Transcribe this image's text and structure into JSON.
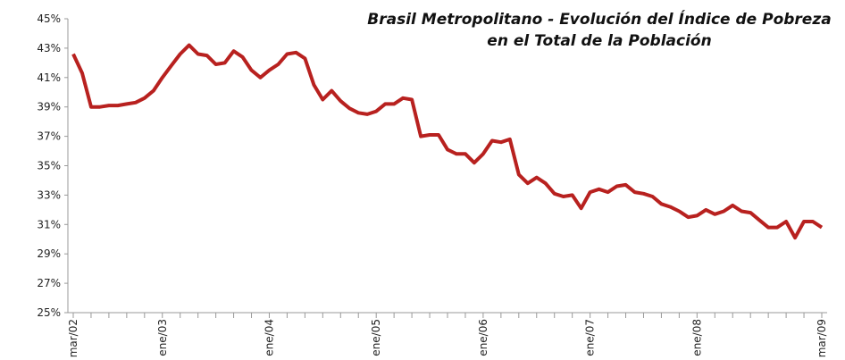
{
  "chart_data": {
    "type": "line",
    "title_lines": [
      "Brasil Metropolitano - Evolución del Índice de Pobreza",
      "en el Total de la Población"
    ],
    "categories": [
      "mar/02",
      null,
      null,
      null,
      null,
      null,
      null,
      null,
      null,
      null,
      "ene/03",
      null,
      null,
      null,
      null,
      null,
      null,
      null,
      null,
      null,
      null,
      null,
      "ene/04",
      null,
      null,
      null,
      null,
      null,
      null,
      null,
      null,
      null,
      null,
      null,
      "ene/05",
      null,
      null,
      null,
      null,
      null,
      null,
      null,
      null,
      null,
      null,
      null,
      "ene/06",
      null,
      null,
      null,
      null,
      null,
      null,
      null,
      null,
      null,
      null,
      null,
      "ene/07",
      null,
      null,
      null,
      null,
      null,
      null,
      null,
      null,
      null,
      null,
      null,
      "ene/08",
      null,
      null,
      null,
      null,
      null,
      null,
      null,
      null,
      null,
      null,
      null,
      null,
      null,
      "mar/09"
    ],
    "series": [
      {
        "color": "#b8211f",
        "values": [
          42.6,
          41.3,
          39.0,
          39.0,
          39.1,
          39.1,
          39.2,
          39.3,
          39.6,
          40.1,
          41.0,
          41.8,
          42.6,
          43.2,
          42.6,
          42.5,
          41.9,
          42.0,
          42.8,
          42.4,
          41.5,
          41.0,
          41.5,
          41.9,
          42.6,
          42.7,
          42.3,
          40.5,
          39.5,
          40.1,
          39.4,
          38.9,
          38.6,
          38.5,
          38.7,
          39.2,
          39.2,
          39.6,
          39.5,
          37.0,
          37.1,
          37.1,
          36.1,
          35.8,
          35.8,
          35.2,
          35.8,
          36.7,
          36.6,
          36.8,
          34.4,
          33.8,
          34.2,
          33.8,
          33.1,
          32.9,
          33.0,
          32.1,
          33.2,
          33.4,
          33.2,
          33.6,
          33.7,
          33.2,
          33.1,
          32.9,
          32.4,
          32.2,
          31.9,
          31.5,
          31.6,
          32.0,
          31.7,
          31.9,
          32.3,
          31.9,
          31.8,
          31.3,
          30.8,
          30.8,
          31.2,
          30.1,
          31.2,
          31.2,
          30.8
        ]
      }
    ],
    "ylim": [
      25,
      45
    ],
    "yticks": [
      {
        "value": 25,
        "label": "25%"
      },
      {
        "value": 27,
        "label": "27%"
      },
      {
        "value": 29,
        "label": "29%"
      },
      {
        "value": 31,
        "label": "31%"
      },
      {
        "value": 33,
        "label": "33%"
      },
      {
        "value": 35,
        "label": "35%"
      },
      {
        "value": 37,
        "label": "37%"
      },
      {
        "value": 39,
        "label": "39%"
      },
      {
        "value": 41,
        "label": "41%"
      },
      {
        "value": 43,
        "label": "43%"
      },
      {
        "value": 45,
        "label": "45%"
      }
    ],
    "grid": false
  }
}
